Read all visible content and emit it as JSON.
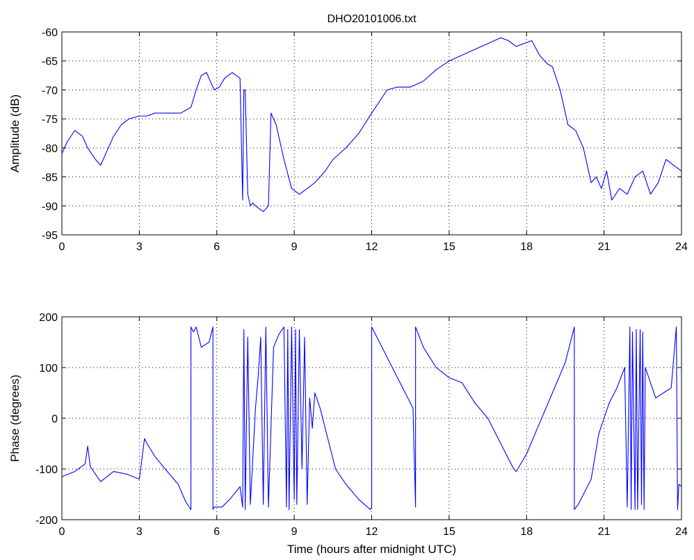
{
  "chart_data": [
    {
      "type": "line",
      "title": "DHO20101006.txt",
      "xlabel": "",
      "ylabel": "Amplitude (dB)",
      "xlim": [
        0,
        24
      ],
      "ylim": [
        -95,
        -60
      ],
      "xticks": [
        0,
        3,
        6,
        9,
        12,
        15,
        18,
        21,
        24
      ],
      "yticks": [
        -95,
        -90,
        -85,
        -80,
        -75,
        -70,
        -65,
        -60
      ],
      "grid": true,
      "line_color": "#0000ff",
      "series": [
        {
          "x": [
            0,
            0.2,
            0.5,
            0.8,
            1.0,
            1.3,
            1.5,
            1.7,
            2.0,
            2.3,
            2.6,
            3.0,
            3.3,
            3.6,
            4.0,
            4.3,
            4.6,
            5.0,
            5.2,
            5.4,
            5.6,
            5.9,
            6.1,
            6.3,
            6.6,
            6.9,
            7.0,
            7.05,
            7.1,
            7.2,
            7.3,
            7.4,
            7.5,
            7.8,
            8.0,
            8.1,
            8.3,
            8.6,
            8.9,
            9.2,
            9.5,
            9.8,
            10.2,
            10.5,
            11.0,
            11.5,
            12.0,
            12.3,
            12.6,
            13.0,
            13.5,
            14.0,
            14.5,
            15.0,
            15.5,
            16.0,
            16.5,
            17.0,
            17.3,
            17.6,
            17.9,
            18.2,
            18.5,
            18.8,
            19.0,
            19.3,
            19.6,
            19.9,
            20.2,
            20.5,
            20.7,
            20.9,
            21.1,
            21.3,
            21.6,
            21.9,
            22.2,
            22.5,
            22.8,
            23.1,
            23.4,
            23.7,
            24.0
          ],
          "y": [
            -81,
            -79,
            -77,
            -78,
            -80,
            -82,
            -83,
            -81,
            -78,
            -76,
            -75,
            -74.5,
            -74.5,
            -74,
            -74,
            -74,
            -74,
            -73,
            -70,
            -67.5,
            -67,
            -70,
            -69.5,
            -68,
            -67,
            -68,
            -89,
            -70,
            -70,
            -88,
            -90,
            -89.5,
            -90,
            -91,
            -90,
            -74,
            -76,
            -82,
            -87,
            -88,
            -87,
            -86,
            -84,
            -82,
            -80,
            -77.5,
            -74,
            -72,
            -70,
            -69.5,
            -69.5,
            -68.5,
            -66.5,
            -65,
            -64,
            -63,
            -62,
            -61,
            -61.5,
            -62.5,
            -62,
            -61.5,
            -64,
            -65.5,
            -66,
            -70,
            -76,
            -77,
            -80,
            -86,
            -85,
            -87,
            -84,
            -89,
            -87,
            -88,
            -85,
            -84,
            -88,
            -86,
            -82,
            -83,
            -84
          ]
        }
      ]
    },
    {
      "type": "line",
      "title": "",
      "xlabel": "Time (hours after midnight UTC)",
      "ylabel": "Phase (degrees)",
      "xlim": [
        0,
        24
      ],
      "ylim": [
        -200,
        200
      ],
      "xticks": [
        0,
        3,
        6,
        9,
        12,
        15,
        18,
        21,
        24
      ],
      "yticks": [
        -200,
        -100,
        0,
        100,
        200
      ],
      "grid": true,
      "line_color": "#0000ff",
      "series": [
        {
          "x": [
            0,
            0.5,
            0.9,
            1.0,
            1.1,
            1.5,
            2.0,
            2.5,
            3.0,
            3.2,
            3.3,
            3.6,
            4.0,
            4.5,
            4.8,
            5.0,
            5.0,
            5.1,
            5.2,
            5.4,
            5.7,
            5.85,
            5.85,
            5.9,
            6.2,
            6.5,
            6.9,
            7.0,
            7.05,
            7.1,
            7.2,
            7.3,
            7.5,
            7.6,
            7.7,
            7.8,
            7.9,
            8.0,
            8.2,
            8.4,
            8.6,
            8.7,
            8.75,
            8.8,
            8.9,
            9.0,
            9.05,
            9.1,
            9.2,
            9.3,
            9.4,
            9.5,
            9.6,
            9.7,
            9.8,
            10.0,
            10.3,
            10.6,
            11.0,
            11.5,
            11.95,
            12.0,
            12.0,
            12.5,
            13.0,
            13.5,
            13.6,
            13.7,
            13.7,
            14.0,
            14.5,
            15.0,
            15.5,
            16.0,
            16.5,
            17.0,
            17.5,
            17.6,
            18.0,
            18.5,
            19.0,
            19.5,
            19.85,
            19.85,
            20.0,
            20.5,
            20.8,
            21.0,
            21.2,
            21.5,
            21.8,
            21.9,
            22.0,
            22.05,
            22.1,
            22.2,
            22.25,
            22.3,
            22.4,
            22.45,
            22.5,
            22.55,
            22.6,
            22.8,
            23.0,
            23.3,
            23.6,
            23.8,
            23.85,
            23.9,
            24.0
          ],
          "y": [
            -115,
            -105,
            -90,
            -55,
            -95,
            -125,
            -105,
            -110,
            -120,
            -40,
            -50,
            -75,
            -100,
            -130,
            -165,
            -180,
            180,
            170,
            180,
            140,
            150,
            180,
            -180,
            -175,
            -175,
            -160,
            -135,
            -175,
            175,
            -180,
            160,
            -170,
            20,
            80,
            160,
            -170,
            180,
            -175,
            140,
            165,
            180,
            -175,
            175,
            -180,
            180,
            -160,
            175,
            -170,
            175,
            -100,
            160,
            -170,
            40,
            -20,
            50,
            20,
            -40,
            -100,
            -130,
            -160,
            -180,
            -175,
            180,
            130,
            80,
            30,
            20,
            -175,
            180,
            140,
            100,
            80,
            70,
            30,
            0,
            -50,
            -100,
            -105,
            -70,
            -10,
            50,
            110,
            180,
            -180,
            -170,
            -120,
            -30,
            0,
            30,
            60,
            100,
            -175,
            180,
            -180,
            170,
            -180,
            175,
            -180,
            175,
            -170,
            170,
            -180,
            100,
            70,
            40,
            50,
            60,
            180,
            -180,
            -130,
            -135
          ]
        }
      ]
    }
  ]
}
